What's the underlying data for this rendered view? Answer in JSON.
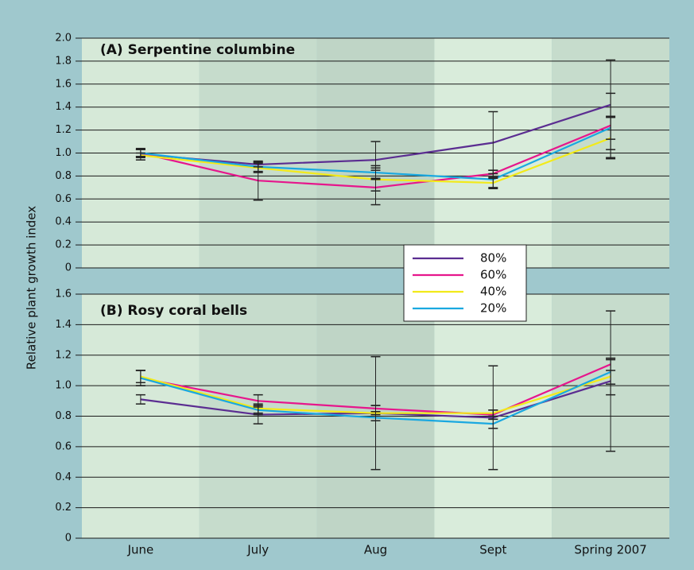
{
  "chart_data": [
    {
      "type": "line",
      "title": "(A) Serpentine columbine",
      "ylabel": "Relative plant growth index",
      "ylim": [
        0,
        2.0
      ],
      "yticks": [
        0,
        0.2,
        0.4,
        0.6,
        0.8,
        {
          "value": 1.0,
          "label": "1.0"
        },
        1.2,
        1.4,
        1.6,
        1.8,
        {
          "value": 2.0,
          "label": "2.0"
        }
      ],
      "grid": true,
      "series": [
        {
          "name": "80%",
          "color": "#5b2d91",
          "values": [
            0.99,
            0.9,
            0.94,
            1.09,
            1.42
          ],
          "errors": [
            0.05,
            0.02,
            0.16,
            0.27,
            0.39
          ]
        },
        {
          "name": "60%",
          "color": "#e6168c",
          "values": [
            1.0,
            0.76,
            0.7,
            0.82,
            1.24
          ],
          "errors": [
            0.03,
            0.17,
            0.15,
            0.03,
            0.28
          ]
        },
        {
          "name": "40%",
          "color": "#f2ea1a",
          "values": [
            0.98,
            0.87,
            0.77,
            0.74,
            1.13
          ],
          "errors": [
            0.02,
            0.04,
            0.1,
            0.04,
            0.18
          ]
        },
        {
          "name": "20%",
          "color": "#1aa8e0",
          "values": [
            1.0,
            0.88,
            0.83,
            0.77,
            1.22
          ],
          "errors": [
            0.03,
            0.04,
            0.06,
            0.08,
            0.1
          ]
        }
      ]
    },
    {
      "type": "line",
      "title": "(B) Rosy coral bells",
      "categories": [
        "June",
        "July",
        "Aug",
        "Sept",
        "Spring 2007"
      ],
      "ylim": [
        0,
        1.6
      ],
      "yticks": [
        0,
        0.2,
        0.4,
        0.6,
        0.8,
        {
          "value": 1.0,
          "label": "1.0"
        },
        1.2,
        1.4,
        1.6
      ],
      "grid": true,
      "series": [
        {
          "color": "#5b2d91",
          "values": [
            0.91,
            0.81,
            0.82,
            0.79,
            1.03
          ],
          "errors": [
            0.03,
            0.06,
            0.37,
            0.34,
            0.46
          ]
        },
        {
          "color": "#e6168c",
          "values": [
            1.05,
            0.9,
            0.85,
            0.81,
            1.14
          ],
          "errors": [
            0.05,
            0.04,
            0.02,
            0.03,
            0.04
          ]
        },
        {
          "color": "#f2ea1a",
          "values": [
            1.06,
            0.85,
            0.82,
            0.82,
            1.06
          ],
          "errors": [
            0.04,
            0.03,
            0.05,
            0.02,
            0.12
          ]
        },
        {
          "color": "#1aa8e0",
          "values": [
            1.05,
            0.84,
            0.79,
            0.75,
            1.09
          ],
          "errors": [
            0.05,
            0.03,
            0.02,
            0.03,
            0.08
          ]
        }
      ]
    }
  ]
}
